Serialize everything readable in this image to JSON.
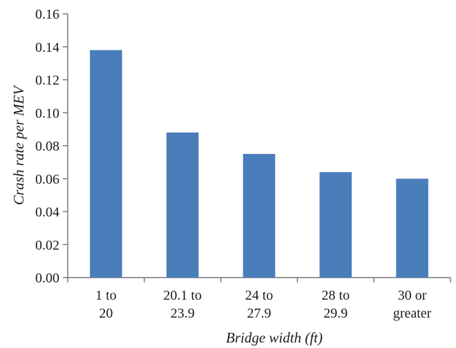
{
  "chart_data": {
    "type": "bar",
    "categories": [
      [
        "1 to",
        "20"
      ],
      [
        "20.1 to",
        "23.9"
      ],
      [
        "24 to",
        "27.9"
      ],
      [
        "28 to",
        "29.9"
      ],
      [
        "30 or",
        "greater"
      ]
    ],
    "values": [
      0.138,
      0.088,
      0.075,
      0.064,
      0.06
    ],
    "y_ticks": [
      "0.00",
      "0.02",
      "0.04",
      "0.06",
      "0.08",
      "0.10",
      "0.12",
      "0.14",
      "0.16"
    ],
    "xlabel": "Bridge width (ft)",
    "ylabel": "Crash rate per MEV",
    "ylim": [
      0,
      0.16
    ],
    "grid": false,
    "legend": "none",
    "bar_color": "#4a7ebb"
  }
}
